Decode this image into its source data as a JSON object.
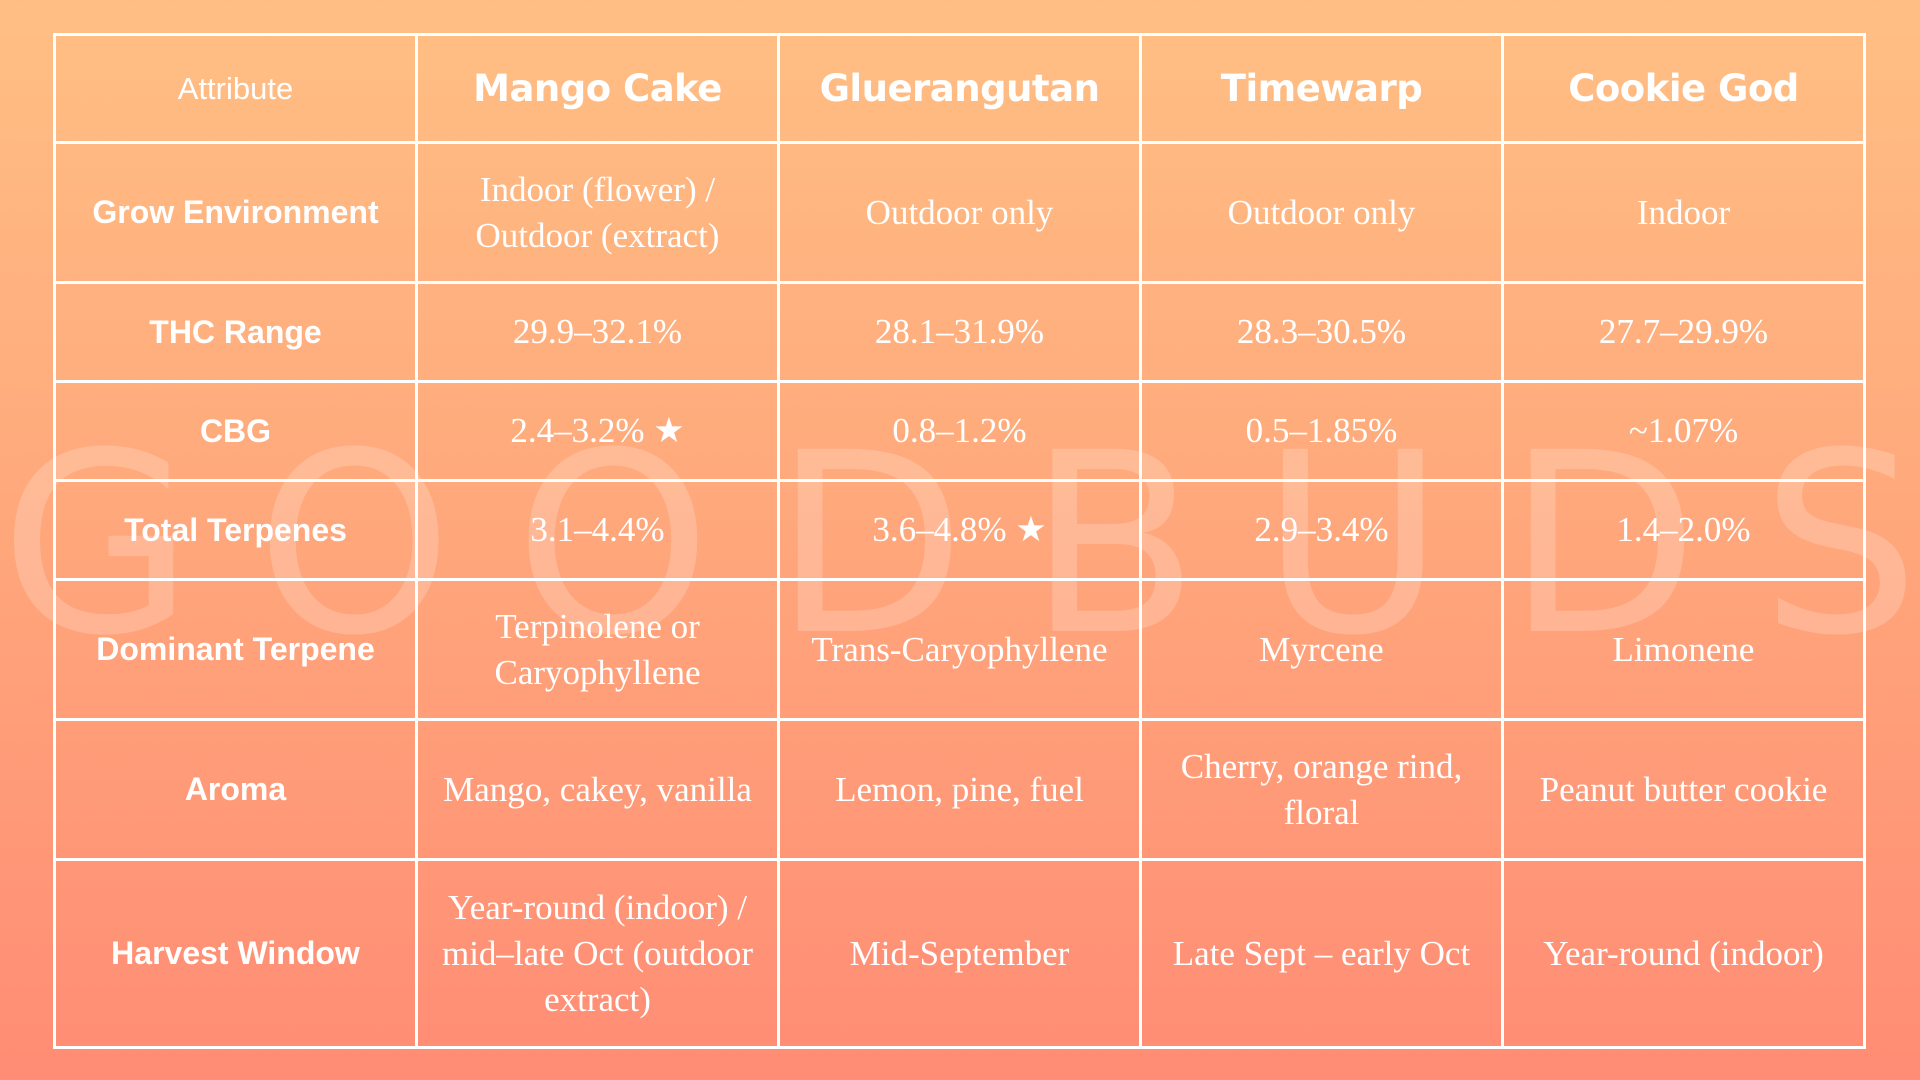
{
  "watermark": "GOODBUDS",
  "table": {
    "attribute_header": "Attribute",
    "strains": [
      "Mango Cake",
      "Gluerangutan",
      "Timewarp",
      "Cookie God"
    ],
    "rows": [
      {
        "label": "Grow Environment",
        "values": [
          "Indoor (flower) / Outdoor (extract)",
          "Outdoor only",
          "Outdoor only",
          "Indoor"
        ]
      },
      {
        "label": "THC Range",
        "values": [
          "29.9–32.1%",
          "28.1–31.9%",
          "28.3–30.5%",
          "27.7–29.9%"
        ]
      },
      {
        "label": "CBG",
        "values": [
          "2.4–3.2% ★",
          "0.8–1.2%",
          "0.5–1.85%",
          "~1.07%"
        ]
      },
      {
        "label": "Total Terpenes",
        "values": [
          "3.1–4.4%",
          "3.6–4.8% ★",
          "2.9–3.4%",
          "1.4–2.0%"
        ]
      },
      {
        "label": "Dominant Terpene",
        "values": [
          "Terpinolene or Caryophyllene",
          "Trans-Caryophyllene",
          "Myrcene",
          "Limonene"
        ]
      },
      {
        "label": "Aroma",
        "values": [
          "Mango, cakey, vanilla",
          "Lemon, pine, fuel",
          "Cherry, orange rind, floral",
          "Peanut butter cookie"
        ]
      },
      {
        "label": "Harvest Window",
        "values": [
          "Year-round (indoor) / mid–late Oct (outdoor extract)",
          "Mid-September",
          "Late Sept – early Oct",
          "Year-round (indoor)"
        ]
      }
    ]
  }
}
